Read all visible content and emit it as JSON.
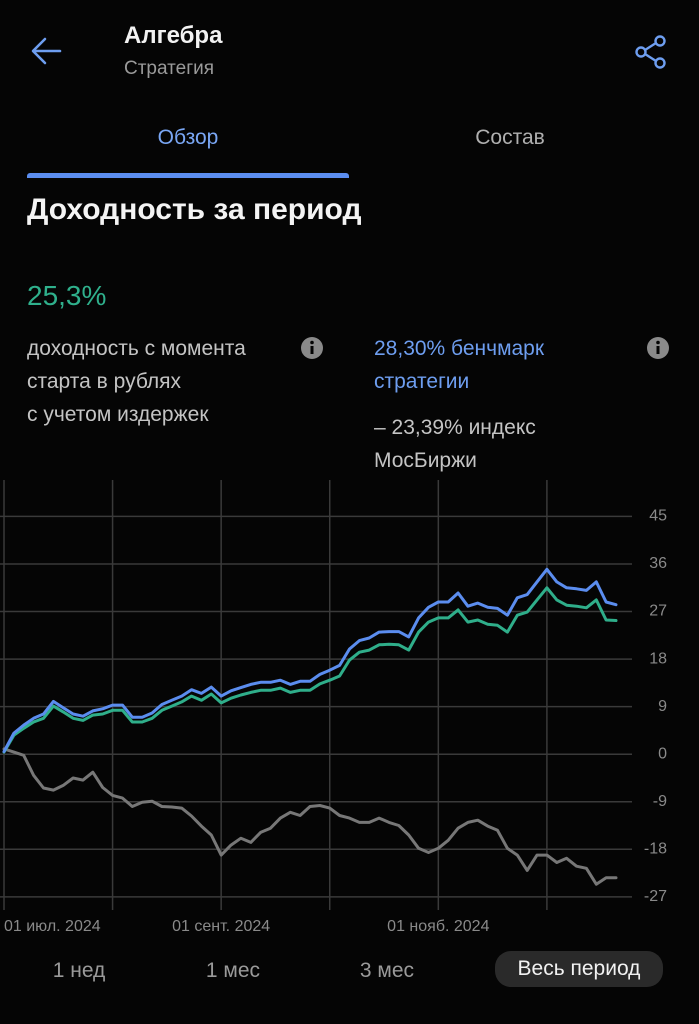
{
  "header": {
    "title": "Алгебра",
    "subtitle": "Стратегия"
  },
  "tabs": [
    "Обзор",
    "Состав"
  ],
  "section_title": "Доходность за период",
  "return": {
    "value": "25,3%",
    "description": "доходность с момента старта в рублях",
    "note": "с учетом издержек"
  },
  "benchmark": {
    "text": "28,30% бенчмарк стратегии",
    "index": "– 23,39% индекс МосБиржи"
  },
  "chart_data": {
    "type": "line",
    "categories": [
      "01 июл. 2024",
      null,
      null,
      null,
      null,
      null,
      null,
      null,
      null,
      null,
      null,
      null,
      null,
      null,
      null,
      null,
      null,
      null,
      null,
      null,
      null,
      null,
      "01 сент. 2024",
      null,
      null,
      null,
      null,
      null,
      null,
      null,
      null,
      null,
      null,
      null,
      null,
      null,
      null,
      null,
      null,
      null,
      null,
      null,
      null,
      null,
      "01 нояб. 2024",
      null,
      null,
      null,
      null,
      null,
      null,
      null,
      null,
      null,
      null,
      null,
      null,
      null,
      null,
      null,
      null,
      null,
      null
    ],
    "series": [
      {
        "color": "#5b8def",
        "values": [
          0.5,
          4,
          5.5,
          6.8,
          7.6,
          10,
          8.8,
          7.6,
          7.2,
          8.2,
          8.6,
          9.3,
          9.3,
          7,
          7,
          7.8,
          9.4,
          10.2,
          11,
          12.2,
          11.5,
          12.7,
          11,
          12,
          12.6,
          13.2,
          13.6,
          13.6,
          14,
          13.2,
          13.8,
          13.8,
          15.1,
          15.9,
          16.8,
          19.9,
          21.5,
          22,
          23.1,
          23.2,
          23.2,
          22.2,
          25.8,
          27.8,
          28.8,
          28.8,
          30.5,
          28,
          28.6,
          27.8,
          27.6,
          26.3,
          29.6,
          30.2,
          32.6,
          35,
          32.6,
          31.5,
          31.3,
          31,
          32.6,
          28.8,
          28.3
        ]
      },
      {
        "color": "#2fae8a",
        "values": [
          0.4,
          3.6,
          4.9,
          6.1,
          6.8,
          9.1,
          8,
          6.8,
          6.4,
          7.4,
          7.6,
          8.3,
          8.3,
          6.1,
          6.1,
          6.8,
          8.3,
          9.1,
          9.9,
          11,
          10.2,
          11.4,
          9.7,
          10.6,
          11.2,
          11.7,
          12.1,
          12.1,
          12.5,
          11.7,
          12.1,
          12.1,
          13.3,
          14,
          14.8,
          17.8,
          19.3,
          19.7,
          20.7,
          20.8,
          20.7,
          19.7,
          23.1,
          25,
          25.8,
          25.8,
          27.3,
          25,
          25.4,
          24.6,
          24.4,
          23.1,
          26.3,
          26.9,
          29.2,
          31.5,
          29.2,
          28.2,
          28,
          27.7,
          29.2,
          25.4,
          25.3
        ]
      },
      {
        "color": "#777777",
        "values": [
          1,
          0.4,
          -0.2,
          -4,
          -6.4,
          -6.8,
          -5.9,
          -4.5,
          -4.9,
          -3.4,
          -6.3,
          -7.8,
          -8.3,
          -9.9,
          -9.1,
          -8.9,
          -9.9,
          -10,
          -10.2,
          -11.7,
          -13.6,
          -15.3,
          -19.1,
          -17.2,
          -15.9,
          -16.7,
          -14.8,
          -14,
          -12.1,
          -11,
          -11.6,
          -9.9,
          -9.7,
          -10.2,
          -11.6,
          -12.1,
          -12.9,
          -12.9,
          -12.1,
          -12.9,
          -13.5,
          -15.3,
          -17.8,
          -18.6,
          -17.8,
          -16.3,
          -14,
          -12.9,
          -12.5,
          -13.6,
          -14.4,
          -17.8,
          -19.1,
          -22,
          -19.1,
          -19.1,
          -20.5,
          -19.7,
          -21.2,
          -21.6,
          -24.6,
          -23.4,
          -23.39
        ]
      }
    ],
    "ylim": [
      -31,
      50
    ],
    "yticks": [
      45,
      36,
      27,
      18,
      9,
      0,
      -9,
      -18,
      -27
    ],
    "grid": true
  },
  "periods": [
    "1 нед",
    "1 мес",
    "3 мес",
    "Весь период"
  ]
}
